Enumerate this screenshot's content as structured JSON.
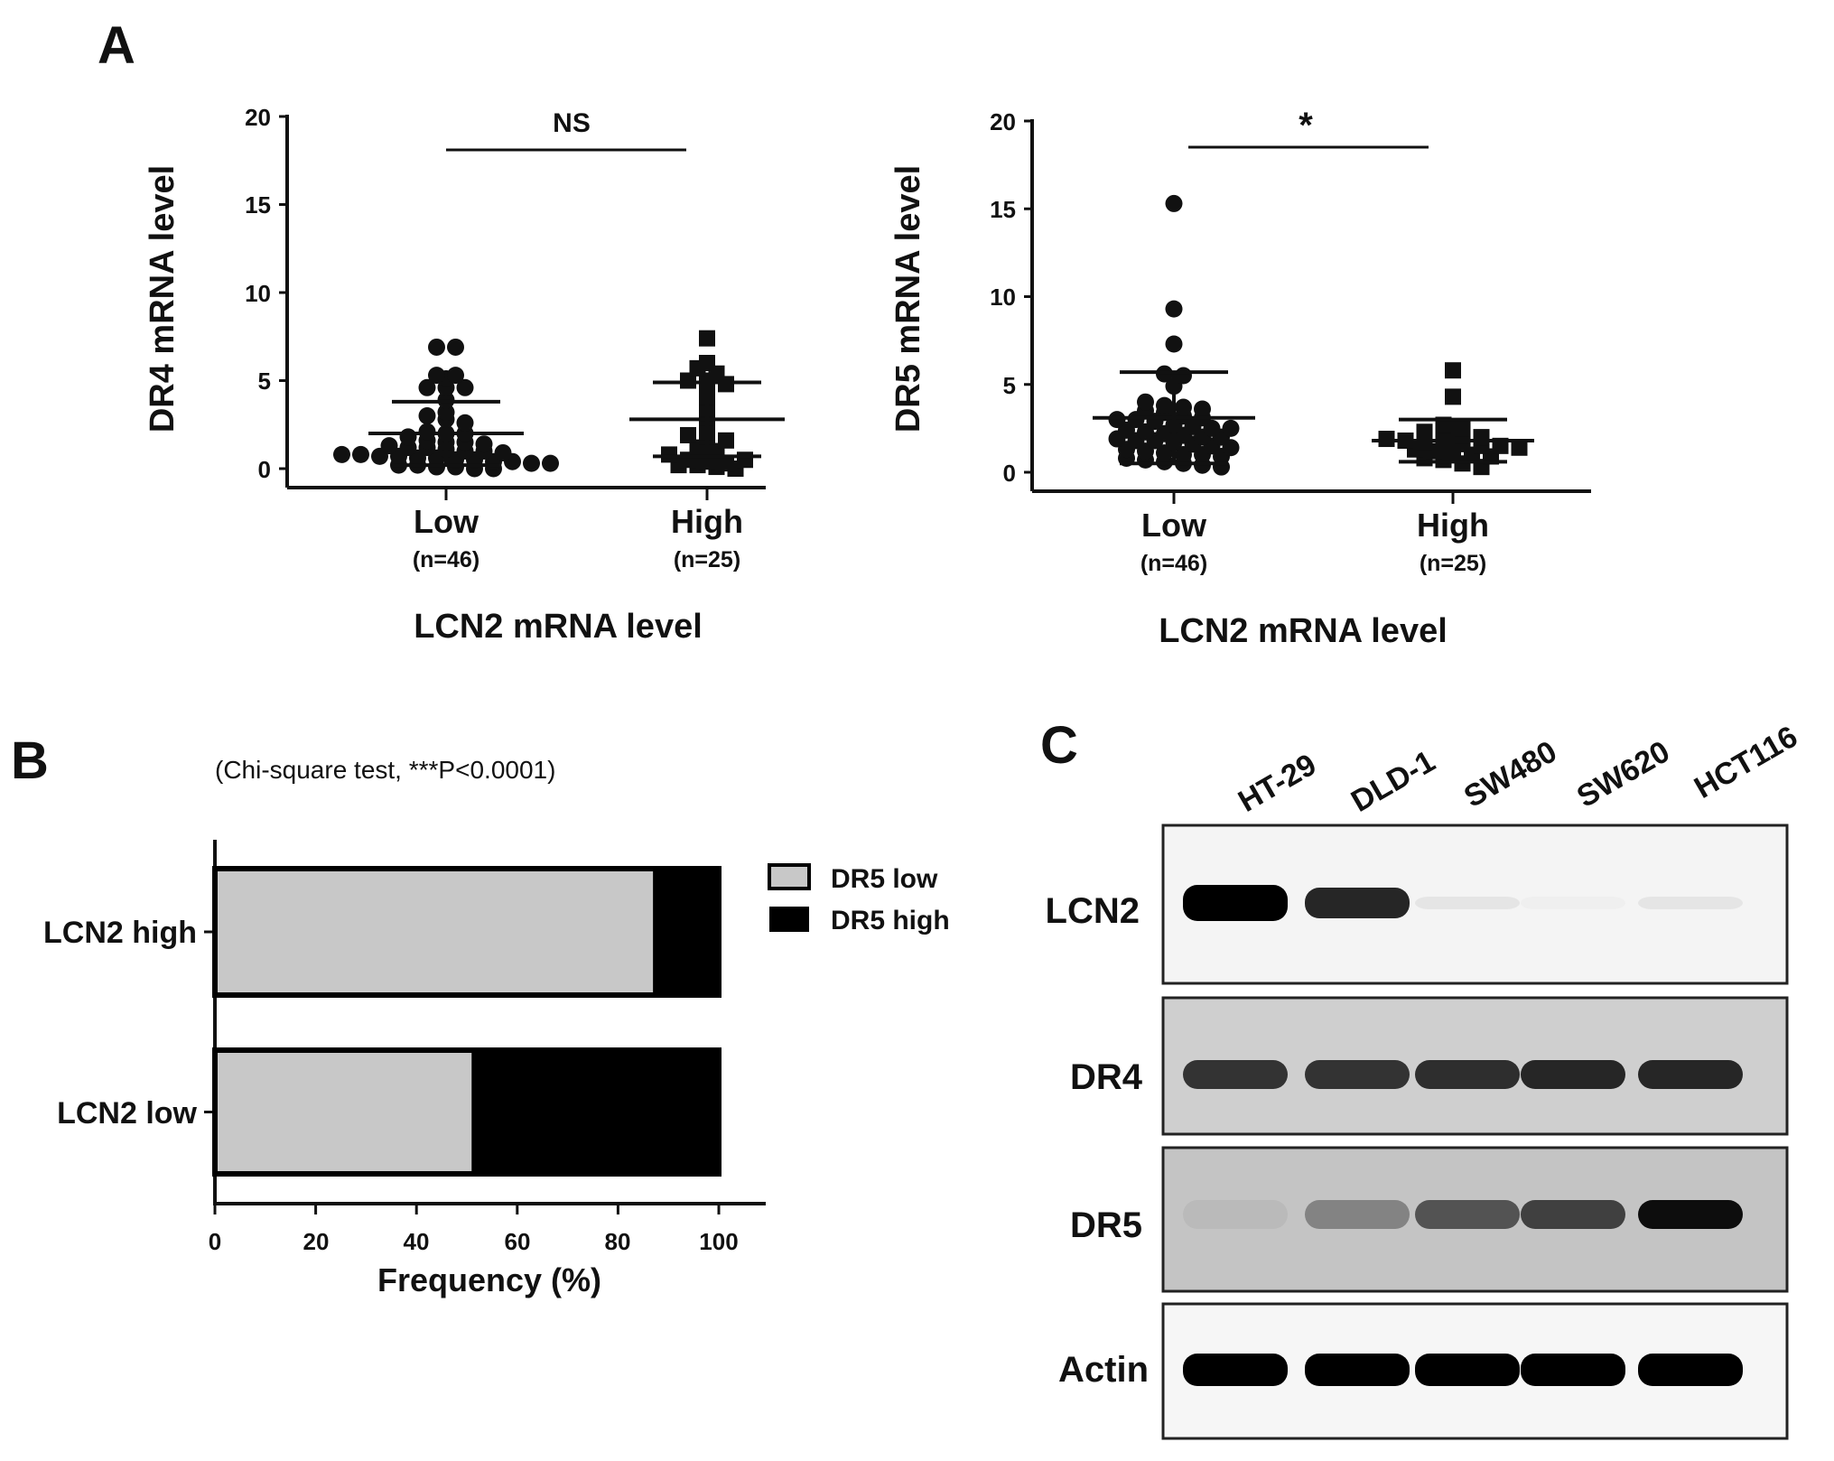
{
  "panels": {
    "a": "A",
    "b": "B",
    "c": "C"
  },
  "chart_data": [
    {
      "type": "scatter",
      "ylabel": "DR4 mRNA level",
      "xlabel": "LCN2 mRNA level",
      "ylim": [
        0,
        20
      ],
      "yticks": [
        "0",
        "5",
        "10",
        "15",
        "20"
      ],
      "categories": [
        {
          "label": "Low",
          "n": "(n=46)"
        },
        {
          "label": "High",
          "n": "(n=25)"
        }
      ],
      "significance": "NS",
      "series": [
        {
          "marker": "circle",
          "values": [
            6.9,
            6.9,
            5.3,
            5.1,
            5.3,
            4.6,
            4.6,
            4.6,
            3.9,
            3.0,
            3.2,
            2.8,
            2.6,
            2.1,
            2.0,
            2.0,
            1.8,
            1.6,
            1.5,
            1.5,
            1.4,
            1.3,
            1.2,
            1.2,
            1.1,
            1.0,
            1.0,
            0.9,
            0.8,
            0.8,
            0.7,
            0.7,
            0.6,
            0.6,
            0.5,
            0.5,
            0.4,
            0.4,
            0.3,
            0.3,
            0.2,
            0.2,
            0.1,
            0.1,
            0.0,
            0.0
          ],
          "mean": 2.0,
          "sd": 1.8
        },
        {
          "marker": "square",
          "values": [
            7.4,
            6.0,
            5.7,
            5.4,
            5.0,
            5.0,
            4.8,
            4.1,
            3.4,
            2.9,
            2.1,
            1.9,
            1.8,
            1.6,
            1.2,
            1.0,
            0.8,
            0.5,
            0.4,
            0.3,
            0.2,
            0.2,
            0.1,
            0.0,
            0.5
          ],
          "mean": 2.8,
          "sd": 2.1
        }
      ]
    },
    {
      "type": "scatter",
      "ylabel": "DR5 mRNA level",
      "xlabel": "LCN2 mRNA level",
      "ylim": [
        0,
        20
      ],
      "yticks": [
        "0",
        "5",
        "10",
        "15",
        "20"
      ],
      "categories": [
        {
          "label": "Low",
          "n": "(n=46)"
        },
        {
          "label": "High",
          "n": "(n=25)"
        }
      ],
      "significance": "*",
      "series": [
        {
          "marker": "circle",
          "values": [
            15.3,
            9.3,
            7.3,
            5.6,
            5.5,
            4.9,
            4.0,
            3.8,
            3.7,
            3.6,
            3.5,
            3.4,
            3.2,
            3.1,
            3.0,
            3.0,
            2.9,
            2.7,
            2.6,
            2.5,
            2.5,
            2.4,
            2.3,
            2.2,
            2.1,
            2.0,
            2.0,
            1.9,
            1.8,
            1.8,
            1.7,
            1.6,
            1.5,
            1.4,
            1.3,
            1.2,
            1.1,
            1.0,
            1.0,
            0.9,
            0.8,
            0.7,
            0.6,
            0.5,
            0.4,
            0.3
          ],
          "mean": 3.1,
          "sd": 2.6
        },
        {
          "marker": "square",
          "values": [
            5.8,
            4.3,
            2.7,
            2.5,
            2.3,
            2.2,
            2.1,
            2.0,
            1.9,
            1.8,
            1.7,
            1.6,
            1.6,
            1.5,
            1.5,
            1.4,
            1.3,
            1.2,
            1.1,
            1.0,
            0.9,
            0.8,
            0.7,
            0.5,
            0.3
          ],
          "mean": 1.8,
          "sd": 1.2
        }
      ]
    },
    {
      "type": "bar",
      "stacked": true,
      "orientation": "horizontal",
      "title": "(Chi-square test, ***P<0.0001)",
      "xlabel": "Frequency (%)",
      "xlim": [
        0,
        110
      ],
      "xticks": [
        "0",
        "20",
        "40",
        "60",
        "80",
        "100"
      ],
      "categories": [
        "LCN2 high",
        "LCN2 low"
      ],
      "legend_position": "right",
      "series": [
        {
          "name": "DR5 low",
          "color": "#c8c8c8",
          "values": [
            87.5,
            51.5
          ]
        },
        {
          "name": "DR5 high",
          "color": "#000000",
          "values": [
            12.5,
            48.5
          ]
        }
      ]
    }
  ],
  "blot": {
    "lanes": [
      "HT-29",
      "DLD-1",
      "SW480",
      "SW620",
      "HCT116"
    ],
    "rows": [
      {
        "label": "LCN2",
        "intensity": [
          1.0,
          0.85,
          0.18,
          0.1,
          0.18
        ]
      },
      {
        "label": "DR4",
        "intensity": [
          0.8,
          0.8,
          0.82,
          0.85,
          0.85
        ]
      },
      {
        "label": "DR5",
        "intensity": [
          0.3,
          0.55,
          0.7,
          0.75,
          0.95
        ]
      },
      {
        "label": "Actin",
        "intensity": [
          1.0,
          1.0,
          1.0,
          1.0,
          1.0
        ]
      }
    ]
  }
}
